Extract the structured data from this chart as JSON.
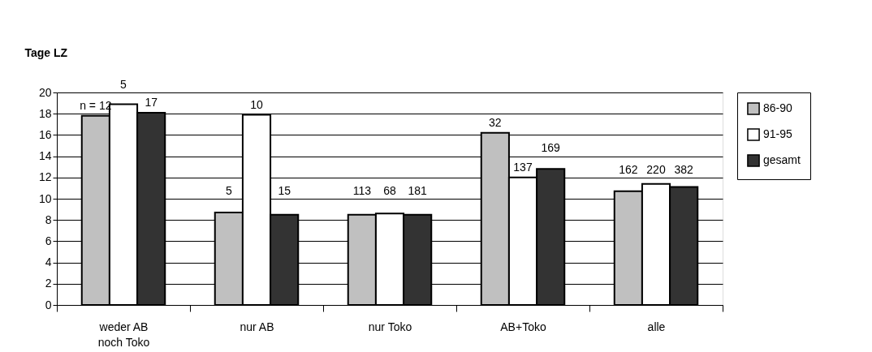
{
  "chart_data": {
    "type": "bar",
    "ylabel": "Tage LZ",
    "categories": [
      "weder AB\nnoch Toko",
      "nur AB",
      "nur Toko",
      "AB+Toko",
      "alle"
    ],
    "series": [
      {
        "name": "86-90",
        "color": "#c0c0c0",
        "values": [
          17.8,
          8.7,
          8.5,
          16.2,
          10.7
        ]
      },
      {
        "name": "91-95",
        "color": "#ffffff",
        "values": [
          18.9,
          17.9,
          8.6,
          12.0,
          11.4
        ]
      },
      {
        "name": "gesamt",
        "color": "#333333",
        "values": [
          18.1,
          8.5,
          8.5,
          12.8,
          11.1
        ]
      }
    ],
    "annotations": [
      "n = 12",
      "5",
      "17",
      "5",
      "10",
      "15",
      "113",
      "68",
      "181",
      "32",
      "137",
      "169",
      "162",
      "220",
      "382"
    ],
    "ylim": [
      0,
      20
    ],
    "yticks": [
      0,
      2,
      4,
      6,
      8,
      10,
      12,
      14,
      16,
      18,
      20
    ],
    "grid": "y",
    "legend": "right"
  }
}
